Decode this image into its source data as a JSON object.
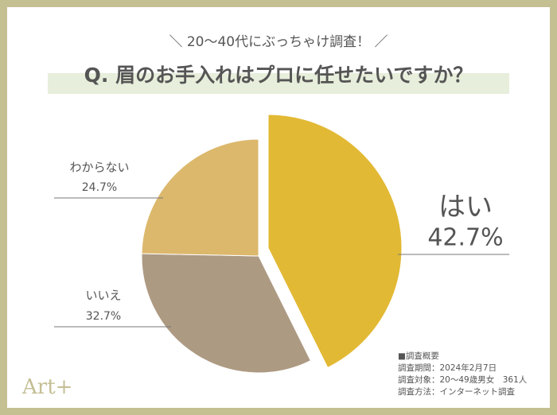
{
  "chart_data": {
    "type": "pie",
    "subtitle": "＼ 20〜40代にぶっちゃけ調査！ ／",
    "title": "Q. 眉のお手入れはプロに任せたいですか？",
    "categories": [
      "はい",
      "いいえ",
      "わからない"
    ],
    "values": [
      42.7,
      32.7,
      24.7
    ],
    "value_labels": [
      "42.7%",
      "32.7%",
      "24.7%"
    ],
    "colors": [
      "#e2b934",
      "#ad9a82",
      "#dcb86d"
    ]
  },
  "survey": {
    "heading": "■調査概要",
    "lines": [
      "調査期間：2024年2月7日",
      "調査対象：20〜49歳男女　361人",
      "調査方法：インターネット調査"
    ]
  },
  "logo": "Art+"
}
